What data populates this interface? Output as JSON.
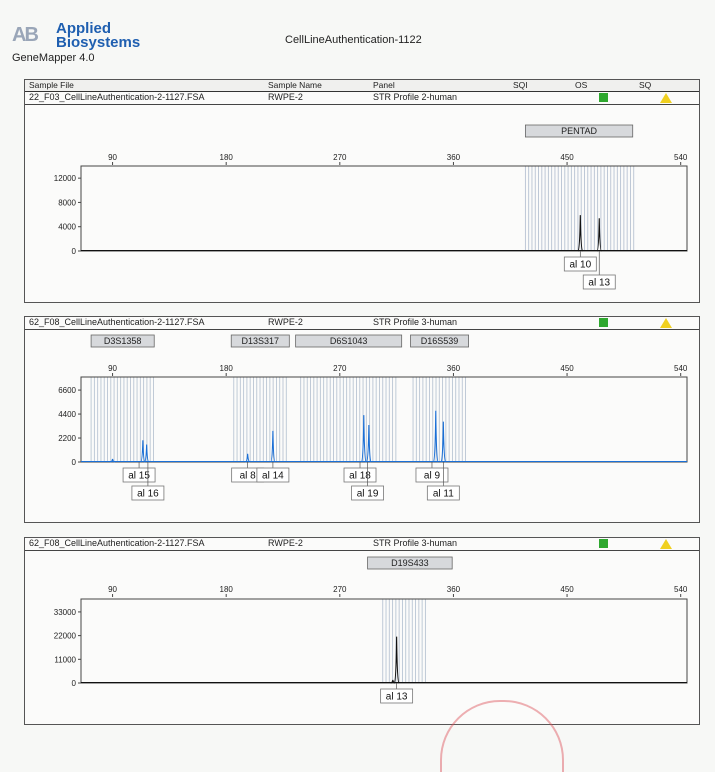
{
  "header": {
    "logo_mark": "AB",
    "logo_line1": "Applied",
    "logo_line2": "Biosystems",
    "app": "GeneMapper  4.0",
    "title": "CellLineAuthentication-1122"
  },
  "table_headers": {
    "sample_file": "Sample File",
    "sample_name": "Sample Name",
    "panel": "Panel",
    "sqi": "SQI",
    "os": "OS",
    "sq": "SQ"
  },
  "colors": {
    "blue_trace": "#1a6fd6",
    "black_trace": "#111111",
    "bin": "#aeb9c8",
    "os_good": "#2fa82f",
    "sq_warn": "#f0d020"
  },
  "chart_data": [
    {
      "type": "line",
      "sample_file": "22_F03_CellLineAuthentication-2-1127.FSA",
      "sample_name": "RWPE-2",
      "panel": "STR Profile 2-human",
      "xlim": [
        65,
        545
      ],
      "x_ticks": [
        90,
        180,
        270,
        360,
        450,
        540
      ],
      "ylim": [
        0,
        14000
      ],
      "y_ticks": [
        0,
        4000,
        8000,
        12000
      ],
      "y_tick_labels": [
        "0",
        "4000",
        "8000",
        "12000"
      ],
      "trace_color": "#111111",
      "markers": [
        {
          "name": "PENTAD",
          "from": 417,
          "to": 502
        }
      ],
      "bins": [
        [
          417,
          503
        ]
      ],
      "peaks": [
        {
          "x": 460.5,
          "y": 5900
        },
        {
          "x": 475.5,
          "y": 5400
        }
      ],
      "allele_labels": [
        {
          "text": "al 10",
          "x": 460.5,
          "row": 1
        },
        {
          "text": "al 13",
          "x": 475.5,
          "row": 2
        }
      ]
    },
    {
      "type": "line",
      "sample_file": "62_F08_CellLineAuthentication-2-1127.FSA",
      "sample_name": "RWPE-2",
      "panel": "STR Profile 3-human",
      "xlim": [
        65,
        545
      ],
      "x_ticks": [
        90,
        180,
        270,
        360,
        450,
        540
      ],
      "ylim": [
        0,
        7800
      ],
      "y_ticks": [
        0,
        2200,
        4400,
        6600
      ],
      "y_tick_labels": [
        "0",
        "2200",
        "4400",
        "6600"
      ],
      "trace_color": "#1a6fd6",
      "markers": [
        {
          "name": "D3S1358",
          "from": 73,
          "to": 123
        },
        {
          "name": "D13S317",
          "from": 184,
          "to": 230
        },
        {
          "name": "D6S1043",
          "from": 235,
          "to": 319
        },
        {
          "name": "D16S539",
          "from": 326,
          "to": 372
        }
      ],
      "bins": [
        [
          73,
          123
        ],
        [
          186,
          228
        ],
        [
          239,
          317
        ],
        [
          328,
          371
        ]
      ],
      "peaks": [
        {
          "x": 90,
          "y": 280
        },
        {
          "x": 114,
          "y": 2000
        },
        {
          "x": 117,
          "y": 1600
        },
        {
          "x": 197,
          "y": 750
        },
        {
          "x": 217,
          "y": 2850
        },
        {
          "x": 289,
          "y": 4300
        },
        {
          "x": 293,
          "y": 3400
        },
        {
          "x": 346,
          "y": 4700
        },
        {
          "x": 352,
          "y": 3700
        }
      ],
      "allele_labels": [
        {
          "text": "al 15",
          "x": 111,
          "row": 1
        },
        {
          "text": "al 16",
          "x": 118,
          "row": 2
        },
        {
          "text": "al 8",
          "x": 197,
          "row": 1
        },
        {
          "text": "al 14",
          "x": 217,
          "row": 1
        },
        {
          "text": "al 18",
          "x": 286,
          "row": 1
        },
        {
          "text": "al 19",
          "x": 292,
          "row": 2
        },
        {
          "text": "al 9",
          "x": 343,
          "row": 1
        },
        {
          "text": "al 11",
          "x": 352,
          "row": 2
        }
      ]
    },
    {
      "type": "line",
      "sample_file": "62_F08_CellLineAuthentication-2-1127.FSA",
      "sample_name": "RWPE-2",
      "panel": "STR Profile 3-human",
      "xlim": [
        65,
        545
      ],
      "x_ticks": [
        90,
        180,
        270,
        360,
        450,
        540
      ],
      "ylim": [
        0,
        39000
      ],
      "y_ticks": [
        0,
        11000,
        22000,
        33000
      ],
      "y_tick_labels": [
        "0",
        "11000",
        "22000",
        "33000"
      ],
      "trace_color": "#111111",
      "markers": [
        {
          "name": "D19S433",
          "from": 292,
          "to": 359
        }
      ],
      "bins": [
        [
          304,
          340
        ]
      ],
      "peaks": [
        {
          "x": 312,
          "y": 1400
        },
        {
          "x": 315,
          "y": 21500
        }
      ],
      "allele_labels": [
        {
          "text": "al 13",
          "x": 315,
          "row": 1
        }
      ]
    }
  ]
}
